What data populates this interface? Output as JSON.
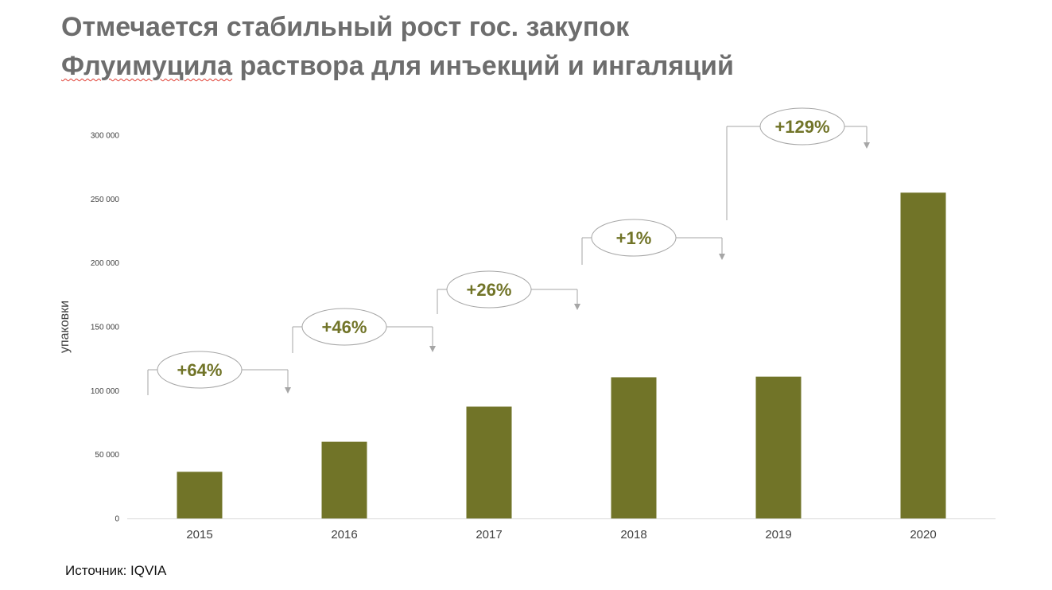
{
  "slide": {
    "title_line1": "Отмечается стабильный рост гос. закупок",
    "title_line2_word1": "Флуимуцила",
    "title_line2_rest": " раствора для инъекций и ингаляций",
    "source": "Источник: IQVIA"
  },
  "colors": {
    "bar": "#717428",
    "growth_label": "#717428",
    "connector": "#a6a6a6",
    "axis_text": "#404040",
    "title": "#6d6d6d"
  },
  "chart_data": {
    "type": "bar",
    "categories": [
      "2015",
      "2016",
      "2017",
      "2018",
      "2019",
      "2020"
    ],
    "values": [
      36500,
      60000,
      87500,
      110500,
      111000,
      255000
    ],
    "ylabel": "упаковки",
    "ylim": [
      0,
      300000
    ],
    "yticks": [
      0,
      50000,
      100000,
      150000,
      200000,
      250000,
      300000
    ],
    "ytick_labels": [
      "0",
      "50 000",
      "100 000",
      "150 000",
      "200 000",
      "250 000",
      "300 000"
    ],
    "grid": false,
    "legend": "none",
    "growth_labels": [
      "+64%",
      "+46%",
      "+26%",
      "+1%",
      "+129%"
    ]
  }
}
